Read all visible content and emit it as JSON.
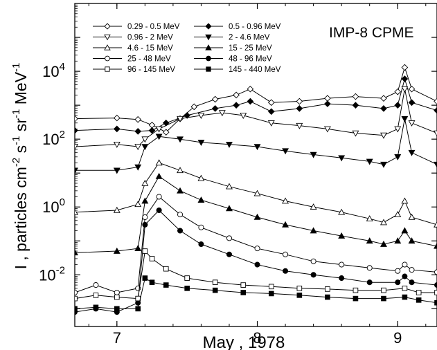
{
  "chart_data": {
    "type": "line",
    "title": "IMP-8 CPME",
    "xlabel": "May , 1978",
    "ylabel": "I , particles cm",
    "ylabel_parts": [
      "-2",
      " s",
      "-1",
      " sr",
      "-1",
      " MeV",
      "-1"
    ],
    "x_ticks": [
      {
        "value": 7,
        "label": "7"
      },
      {
        "value": 8,
        "label": "8"
      },
      {
        "value": 9,
        "label": "9"
      }
    ],
    "xlim": [
      6.7,
      9.28
    ],
    "yscale": "log",
    "ylim": [
      0.0003,
      1000000
    ],
    "y_ticks": [
      {
        "value": 0.01,
        "base": "10",
        "exp": "-2"
      },
      {
        "value": 1,
        "base": "10",
        "exp": "0"
      },
      {
        "value": 100,
        "base": "10",
        "exp": "2"
      },
      {
        "value": 10000,
        "base": "10",
        "exp": "4"
      }
    ],
    "legend_position": "top-left",
    "series": [
      {
        "name": "0.29 - 0.5 MeV",
        "marker": "diamond-open",
        "points": [
          [
            6.7,
            400
          ],
          [
            7.0,
            420
          ],
          [
            7.15,
            380
          ],
          [
            7.25,
            260
          ],
          [
            7.35,
            160
          ],
          [
            7.45,
            400
          ],
          [
            7.55,
            900
          ],
          [
            7.7,
            1500
          ],
          [
            7.85,
            2000
          ],
          [
            7.95,
            3000
          ],
          [
            8.1,
            1200
          ],
          [
            8.3,
            1300
          ],
          [
            8.5,
            1600
          ],
          [
            8.7,
            1800
          ],
          [
            8.9,
            1600
          ],
          [
            9.0,
            2500
          ],
          [
            9.05,
            13000
          ],
          [
            9.1,
            3000
          ],
          [
            9.28,
            1300
          ]
        ]
      },
      {
        "name": "0.5 - 0.96 MeV",
        "marker": "diamond-filled",
        "points": [
          [
            6.7,
            180
          ],
          [
            7.0,
            200
          ],
          [
            7.15,
            170
          ],
          [
            7.25,
            180
          ],
          [
            7.35,
            300
          ],
          [
            7.5,
            500
          ],
          [
            7.7,
            800
          ],
          [
            7.85,
            1000
          ],
          [
            7.95,
            1300
          ],
          [
            8.1,
            650
          ],
          [
            8.3,
            800
          ],
          [
            8.5,
            1100
          ],
          [
            8.7,
            1000
          ],
          [
            8.9,
            800
          ],
          [
            9.0,
            1000
          ],
          [
            9.05,
            6000
          ],
          [
            9.1,
            1200
          ],
          [
            9.28,
            700
          ]
        ]
      },
      {
        "name": "0.96 - 2 MeV",
        "marker": "triangle-down-open",
        "points": [
          [
            6.7,
            60
          ],
          [
            7.0,
            70
          ],
          [
            7.15,
            60
          ],
          [
            7.2,
            100
          ],
          [
            7.3,
            200
          ],
          [
            7.45,
            400
          ],
          [
            7.6,
            500
          ],
          [
            7.75,
            600
          ],
          [
            7.9,
            500
          ],
          [
            8.1,
            300
          ],
          [
            8.3,
            250
          ],
          [
            8.5,
            200
          ],
          [
            8.7,
            150
          ],
          [
            8.9,
            130
          ],
          [
            9.0,
            200
          ],
          [
            9.05,
            3000
          ],
          [
            9.1,
            300
          ],
          [
            9.28,
            150
          ]
        ]
      },
      {
        "name": "2 - 4.6 MeV",
        "marker": "triangle-down-filled",
        "points": [
          [
            6.7,
            12
          ],
          [
            7.0,
            12
          ],
          [
            7.15,
            15
          ],
          [
            7.2,
            60
          ],
          [
            7.3,
            120
          ],
          [
            7.45,
            100
          ],
          [
            7.6,
            80
          ],
          [
            7.8,
            70
          ],
          [
            8.0,
            60
          ],
          [
            8.2,
            45
          ],
          [
            8.4,
            35
          ],
          [
            8.6,
            28
          ],
          [
            8.8,
            22
          ],
          [
            8.9,
            18
          ],
          [
            9.0,
            30
          ],
          [
            9.05,
            400
          ],
          [
            9.1,
            40
          ],
          [
            9.28,
            18
          ]
        ]
      },
      {
        "name": "4.6 - 15 MeV",
        "marker": "triangle-up-open",
        "points": [
          [
            6.7,
            0.7
          ],
          [
            7.0,
            0.8
          ],
          [
            7.15,
            1.2
          ],
          [
            7.2,
            5
          ],
          [
            7.3,
            20
          ],
          [
            7.45,
            12
          ],
          [
            7.6,
            7
          ],
          [
            7.8,
            4
          ],
          [
            8.0,
            2.5
          ],
          [
            8.2,
            1.5
          ],
          [
            8.4,
            1.0
          ],
          [
            8.6,
            0.7
          ],
          [
            8.8,
            0.45
          ],
          [
            8.9,
            0.35
          ],
          [
            9.0,
            0.6
          ],
          [
            9.05,
            1.5
          ],
          [
            9.1,
            0.5
          ],
          [
            9.28,
            0.3
          ]
        ]
      },
      {
        "name": "15 - 25 MeV",
        "marker": "triangle-up-filled",
        "points": [
          [
            6.7,
            0.045
          ],
          [
            7.0,
            0.05
          ],
          [
            7.15,
            0.06
          ],
          [
            7.2,
            1.5
          ],
          [
            7.3,
            8
          ],
          [
            7.45,
            3
          ],
          [
            7.6,
            1.6
          ],
          [
            7.8,
            0.9
          ],
          [
            8.0,
            0.5
          ],
          [
            8.2,
            0.3
          ],
          [
            8.4,
            0.2
          ],
          [
            8.6,
            0.14
          ],
          [
            8.8,
            0.1
          ],
          [
            8.9,
            0.08
          ],
          [
            9.0,
            0.1
          ],
          [
            9.05,
            0.2
          ],
          [
            9.1,
            0.1
          ],
          [
            9.28,
            0.07
          ]
        ]
      },
      {
        "name": "25 - 48 MeV",
        "marker": "circle-open",
        "points": [
          [
            6.7,
            0.003
          ],
          [
            6.85,
            0.005
          ],
          [
            7.0,
            0.003
          ],
          [
            7.15,
            0.004
          ],
          [
            7.2,
            0.5
          ],
          [
            7.3,
            2
          ],
          [
            7.45,
            0.6
          ],
          [
            7.6,
            0.25
          ],
          [
            7.8,
            0.12
          ],
          [
            8.0,
            0.06
          ],
          [
            8.2,
            0.04
          ],
          [
            8.4,
            0.025
          ],
          [
            8.6,
            0.02
          ],
          [
            8.8,
            0.016
          ],
          [
            9.0,
            0.013
          ],
          [
            9.05,
            0.02
          ],
          [
            9.1,
            0.014
          ],
          [
            9.28,
            0.012
          ]
        ]
      },
      {
        "name": "48 - 96 MeV",
        "marker": "circle-filled",
        "points": [
          [
            6.7,
            0.0008
          ],
          [
            6.85,
            0.001
          ],
          [
            7.0,
            0.0008
          ],
          [
            7.15,
            0.0015
          ],
          [
            7.2,
            0.3
          ],
          [
            7.3,
            0.8
          ],
          [
            7.45,
            0.2
          ],
          [
            7.6,
            0.08
          ],
          [
            7.8,
            0.04
          ],
          [
            8.0,
            0.02
          ],
          [
            8.2,
            0.013
          ],
          [
            8.4,
            0.01
          ],
          [
            8.6,
            0.008
          ],
          [
            8.8,
            0.006
          ],
          [
            9.0,
            0.006
          ],
          [
            9.05,
            0.009
          ],
          [
            9.1,
            0.006
          ],
          [
            9.28,
            0.005
          ]
        ]
      },
      {
        "name": "96 - 145 MeV",
        "marker": "square-open",
        "points": [
          [
            6.7,
            0.002
          ],
          [
            6.85,
            0.0025
          ],
          [
            7.0,
            0.0022
          ],
          [
            7.15,
            0.002
          ],
          [
            7.2,
            0.05
          ],
          [
            7.25,
            0.03
          ],
          [
            7.35,
            0.015
          ],
          [
            7.5,
            0.008
          ],
          [
            7.7,
            0.006
          ],
          [
            7.9,
            0.005
          ],
          [
            8.1,
            0.0045
          ],
          [
            8.3,
            0.004
          ],
          [
            8.5,
            0.0038
          ],
          [
            8.7,
            0.0035
          ],
          [
            8.9,
            0.0035
          ],
          [
            9.05,
            0.004
          ],
          [
            9.15,
            0.003
          ],
          [
            9.28,
            0.003
          ]
        ]
      },
      {
        "name": "145 - 440 MeV",
        "marker": "square-filled",
        "points": [
          [
            6.7,
            0.001
          ],
          [
            6.85,
            0.0011
          ],
          [
            7.0,
            0.001
          ],
          [
            7.15,
            0.001
          ],
          [
            7.2,
            0.008
          ],
          [
            7.25,
            0.006
          ],
          [
            7.35,
            0.005
          ],
          [
            7.5,
            0.004
          ],
          [
            7.7,
            0.0035
          ],
          [
            7.9,
            0.003
          ],
          [
            8.1,
            0.0028
          ],
          [
            8.3,
            0.0025
          ],
          [
            8.5,
            0.0022
          ],
          [
            8.7,
            0.002
          ],
          [
            8.9,
            0.002
          ],
          [
            9.05,
            0.0022
          ],
          [
            9.15,
            0.0018
          ],
          [
            9.28,
            0.0015
          ]
        ]
      }
    ]
  }
}
